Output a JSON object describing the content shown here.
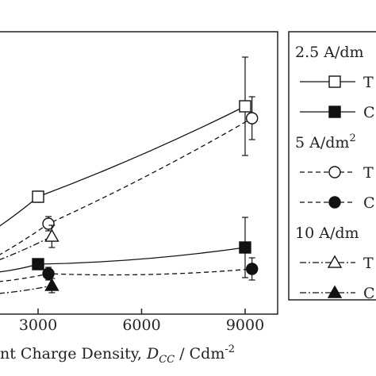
{
  "chart_data": {
    "type": "line",
    "xlabel_prefix": "nt Charge Density, ",
    "xlabel_symbol": "D",
    "xlabel_sub": "CC",
    "xlabel_unit": " / Cdm",
    "xlabel_unit_sup": "-2",
    "xlim": [
      2000,
      9800
    ],
    "xticks": [
      "3000",
      "6000",
      "9000"
    ],
    "grid": false,
    "legend_position": "right",
    "legend_groups": [
      {
        "label": "2.5 A/dm",
        "sup": "",
        "entries": [
          {
            "text": "T",
            "series": 0
          },
          {
            "text": "C",
            "series": 1
          }
        ]
      },
      {
        "label": "5 A/dm",
        "sup": "2",
        "entries": [
          {
            "text": "T",
            "series": 2
          },
          {
            "text": "C",
            "series": 3
          }
        ]
      },
      {
        "label": "10 A/dm",
        "sup": "",
        "entries": [
          {
            "text": "T",
            "series": 4
          },
          {
            "text": "C",
            "series": 5
          }
        ]
      }
    ],
    "series": [
      {
        "marker": "square-open",
        "line": "solid",
        "x": [
          3000,
          9000
        ],
        "y": [
          248,
          134
        ],
        "err": [
          7,
          62
        ]
      },
      {
        "marker": "square-filled",
        "line": "solid",
        "x": [
          3000,
          9000
        ],
        "y": [
          333,
          312
        ],
        "err": [
          0,
          38
        ]
      },
      {
        "marker": "circle-open",
        "line": "dashed",
        "x": [
          3300,
          9200
        ],
        "y": [
          282,
          149
        ],
        "err": [
          9,
          27
        ]
      },
      {
        "marker": "circle-filled",
        "line": "dashed",
        "x": [
          3300,
          9200
        ],
        "y": [
          345,
          339
        ],
        "err": [
          8,
          14
        ]
      },
      {
        "marker": "triangle-open",
        "line": "dashdot",
        "x": [
          3400
        ],
        "y": [
          298
        ],
        "err": [
          14
        ]
      },
      {
        "marker": "triangle-filled",
        "line": "dashdot",
        "x": [
          3400
        ],
        "y": [
          360
        ],
        "err": [
          9
        ]
      }
    ]
  }
}
